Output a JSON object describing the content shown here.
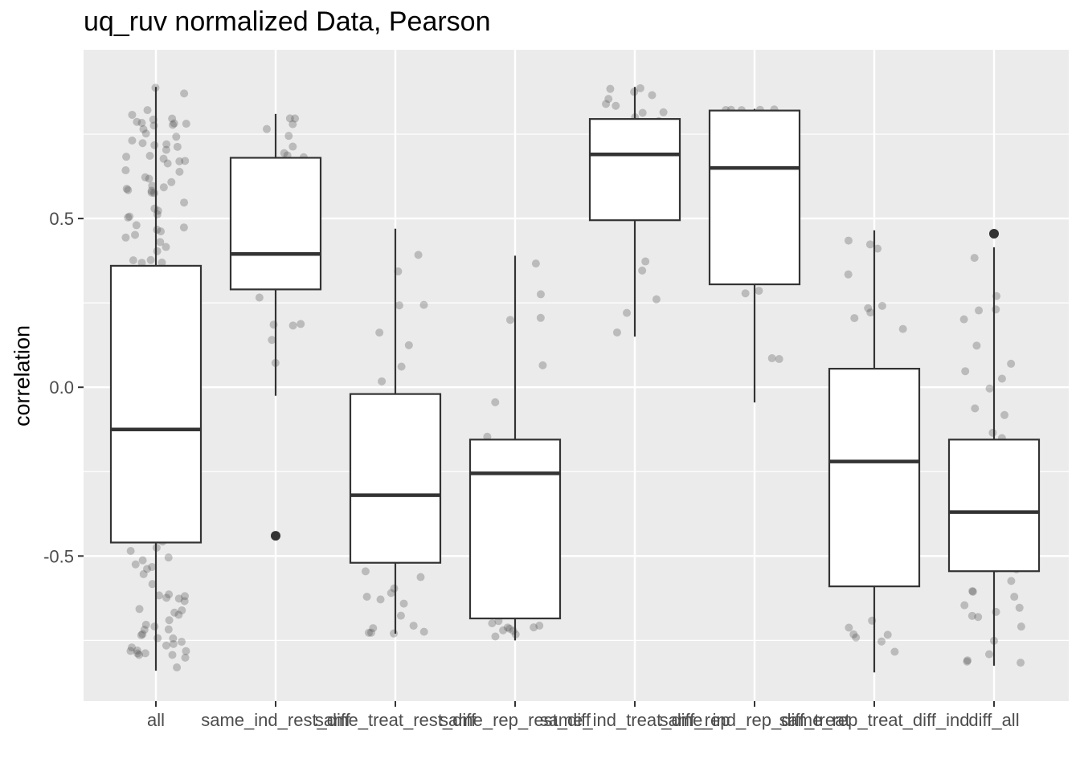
{
  "chart_data": {
    "type": "box",
    "title": "uq_ruv normalized Data, Pearson",
    "xlabel": "",
    "ylabel": "correlation",
    "ylim": [
      -0.93,
      1.0
    ],
    "yticks": [
      -0.5,
      0.0,
      0.5
    ],
    "ytick_labels": [
      "-0.5",
      "0.0",
      "0.5"
    ],
    "grid": true,
    "categories": [
      "all",
      "same_ind_rest_diff",
      "same_treat_rest_diff",
      "same_rep_rest_diff",
      "same_ind_treat_diff_rep",
      "same_ind_rep_diff_treat",
      "same_rep_treat_diff_ind",
      "diff_all"
    ],
    "boxes": [
      {
        "category": "all",
        "whisker_low": -0.84,
        "q1": -0.46,
        "median": -0.125,
        "q3": 0.36,
        "whisker_high": 0.89,
        "outliers": []
      },
      {
        "category": "same_ind_rest_diff",
        "whisker_low": -0.025,
        "q1": 0.29,
        "median": 0.395,
        "q3": 0.68,
        "whisker_high": 0.81,
        "outliers": [
          -0.44
        ]
      },
      {
        "category": "same_treat_rest_diff",
        "whisker_low": -0.73,
        "q1": -0.52,
        "median": -0.32,
        "q3": -0.02,
        "whisker_high": 0.47,
        "outliers": []
      },
      {
        "category": "same_rep_rest_diff",
        "whisker_low": -0.75,
        "q1": -0.685,
        "median": -0.255,
        "q3": -0.155,
        "whisker_high": 0.39,
        "outliers": []
      },
      {
        "category": "same_ind_treat_diff_rep",
        "whisker_low": 0.15,
        "q1": 0.495,
        "median": 0.69,
        "q3": 0.795,
        "whisker_high": 0.89,
        "outliers": []
      },
      {
        "category": "same_ind_rep_diff_treat",
        "whisker_low": -0.045,
        "q1": 0.305,
        "median": 0.65,
        "q3": 0.82,
        "whisker_high": 0.825,
        "outliers": []
      },
      {
        "category": "same_rep_treat_diff_ind",
        "whisker_low": -0.845,
        "q1": -0.59,
        "median": -0.22,
        "q3": 0.055,
        "whisker_high": 0.465,
        "outliers": []
      },
      {
        "category": "diff_all",
        "whisker_low": -0.825,
        "q1": -0.545,
        "median": -0.37,
        "q3": -0.155,
        "whisker_high": 0.415,
        "outliers": [
          0.455
        ]
      }
    ]
  },
  "colors": {
    "panel_bg": "#ebebeb",
    "grid": "#ffffff",
    "box_stroke": "#333333",
    "box_fill": "#ffffff",
    "jitter_point": "#4d4d4d",
    "outlier": "#333333",
    "tick_text": "#4d4d4d"
  }
}
